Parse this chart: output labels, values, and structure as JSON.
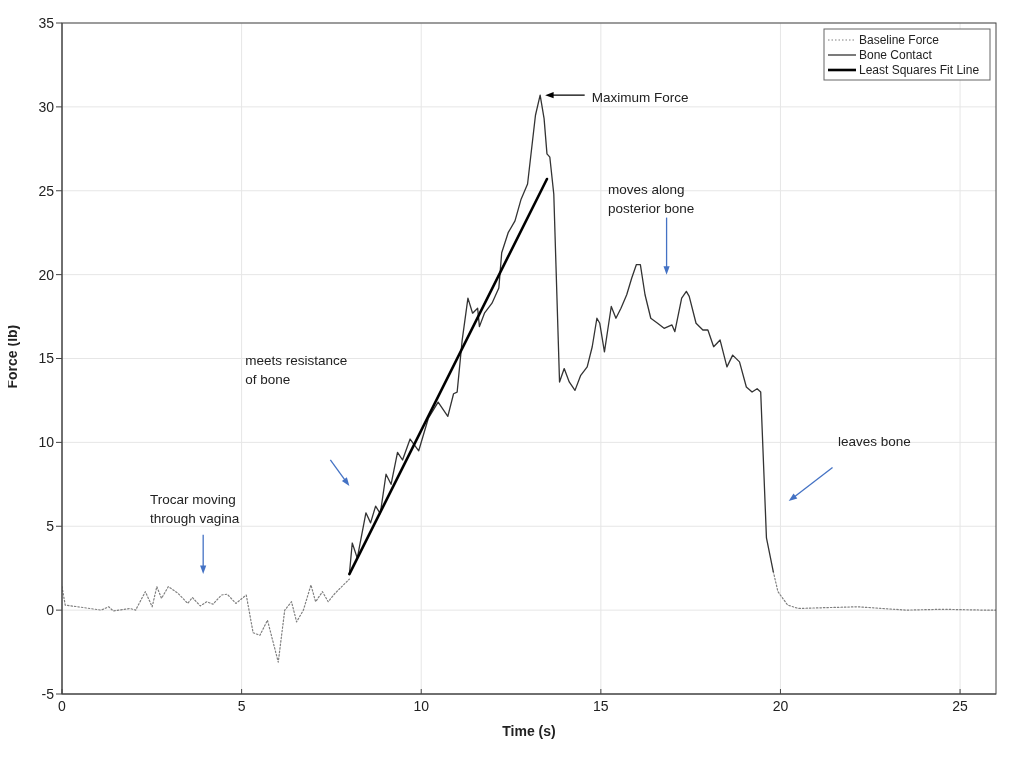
{
  "chart_data": {
    "type": "line",
    "xlabel": "Time (s)",
    "ylabel": "Force (lb)",
    "xlim": [
      0,
      26
    ],
    "xticks": [
      0,
      5,
      10,
      15,
      20,
      25
    ],
    "ylim": [
      -5,
      35
    ],
    "yticks": [
      -5,
      0,
      5,
      10,
      15,
      20,
      25,
      30,
      35
    ],
    "grid": true,
    "legend": "top right",
    "marker": "none",
    "series": [
      {
        "name": "Baseline Force",
        "color": "#808080",
        "line_style": "dotted",
        "x": [
          0,
          0.09,
          0.44,
          1.09,
          1.3,
          1.43,
          1.89,
          2.05,
          2.32,
          2.51,
          2.64,
          2.77,
          2.96,
          3.23,
          3.5,
          3.63,
          3.85,
          4.03,
          4.2,
          4.44,
          4.6,
          4.84,
          5.13,
          5.32,
          5.51,
          5.72,
          6.02,
          6.2,
          6.39,
          6.53,
          6.72,
          6.93,
          7.06,
          7.25,
          7.41,
          7.6,
          7.81,
          8.0,
          14,
          19.8,
          19.93,
          20.2,
          20.5,
          21.3,
          22.16,
          23.5,
          24.5,
          25.7,
          26
        ],
        "values": [
          1.4,
          0.3,
          0.2,
          0,
          0.2,
          -0.05,
          0.1,
          0,
          1.1,
          0.2,
          1.4,
          0.7,
          1.4,
          1.0,
          0.4,
          0.75,
          0.25,
          0.5,
          0.35,
          0.9,
          0.95,
          0.4,
          0.9,
          -1.35,
          -1.5,
          -0.6,
          -3.1,
          0,
          0.5,
          -0.7,
          0,
          1.5,
          0.5,
          1.1,
          0.5,
          1.0,
          1.45,
          1.85,
          null,
          2.3,
          1.1,
          0.3,
          0.1,
          0.15,
          0.2,
          0,
          0.05,
          0,
          0
        ]
      },
      {
        "name": "Bone Contact",
        "color": "#333333",
        "line_style": "solid",
        "x": [
          8.0,
          8.08,
          8.22,
          8.46,
          8.59,
          8.73,
          8.86,
          9.02,
          9.16,
          9.34,
          9.48,
          9.69,
          9.93,
          10.2,
          10.47,
          10.74,
          10.9,
          11.0,
          11.14,
          11.3,
          11.43,
          11.57,
          11.62,
          11.76,
          11.97,
          12.16,
          12.24,
          12.42,
          12.61,
          12.78,
          12.96,
          13.18,
          13.31,
          13.42,
          13.5,
          13.58,
          13.69,
          13.85,
          13.98,
          14.12,
          14.28,
          14.44,
          14.62,
          14.76,
          14.89,
          14.97,
          15.1,
          15.29,
          15.42,
          15.56,
          15.72,
          15.86,
          15.99,
          16.1,
          16.23,
          16.39,
          16.58,
          16.76,
          16.98,
          17.06,
          17.25,
          17.38,
          17.46,
          17.65,
          17.84,
          17.98,
          18.14,
          18.32,
          18.51,
          18.67,
          18.86,
          19.05,
          19.21,
          19.35,
          19.45,
          19.61,
          19.8
        ],
        "values": [
          2.15,
          4.0,
          3.1,
          5.8,
          5.2,
          6.2,
          5.75,
          8.1,
          7.5,
          9.4,
          8.95,
          10.2,
          9.5,
          11.45,
          12.4,
          11.55,
          12.9,
          13.0,
          16.1,
          18.6,
          17.7,
          18.0,
          16.9,
          17.7,
          18.3,
          19.2,
          21.3,
          22.5,
          23.2,
          24.5,
          25.4,
          29.5,
          30.7,
          29.3,
          27.2,
          27.0,
          24.8,
          13.6,
          14.4,
          13.6,
          13.1,
          14.0,
          14.5,
          15.7,
          17.4,
          17.1,
          15.4,
          18.1,
          17.4,
          18.0,
          18.8,
          19.8,
          20.6,
          20.6,
          18.8,
          17.4,
          17.1,
          16.8,
          17.0,
          16.6,
          18.6,
          19.0,
          18.7,
          17.1,
          16.7,
          16.7,
          15.7,
          16.1,
          14.5,
          15.2,
          14.8,
          13.3,
          13.0,
          13.2,
          13.0,
          4.3,
          2.3
        ]
      },
      {
        "name": "Least Squares Fit Line",
        "color": "#000000",
        "line_style": "solid",
        "x": [
          8.0,
          13.5
        ],
        "values": [
          2.15,
          25.7
        ]
      }
    ],
    "annotations": [
      "Maximum Force",
      "Trocar moving\nthrough vagina",
      "meets resistance\nof bone",
      "moves along\nposterior bone",
      "leaves bone"
    ]
  }
}
